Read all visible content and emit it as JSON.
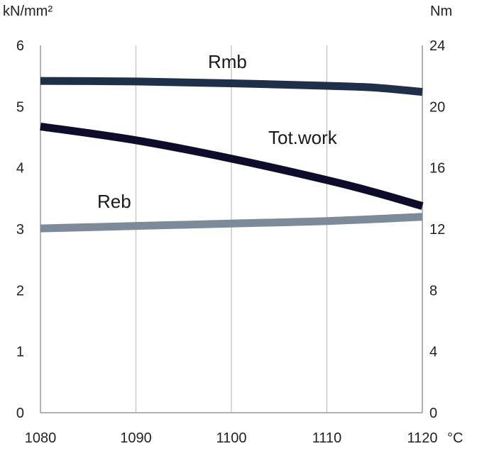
{
  "chart_data": {
    "type": "line",
    "title": "",
    "x": [
      1080,
      1120
    ],
    "xlim": [
      1080,
      1120
    ],
    "xticks": [
      "1080",
      "1090",
      "1100",
      "1110",
      "1120"
    ],
    "xunit": "°C",
    "ylim": [
      0,
      6
    ],
    "yticks": [
      "0",
      "1",
      "2",
      "3",
      "4",
      "5",
      "6"
    ],
    "yunit": "kN/mm²",
    "y2lim": [
      0,
      24
    ],
    "y2ticks": [
      "0",
      "4",
      "8",
      "12",
      "16",
      "20",
      "24"
    ],
    "y2unit": "Nm",
    "grid": "vertical",
    "series": [
      {
        "name": "Rmb",
        "axis": "left",
        "color": "#1f2f4a",
        "points": [
          [
            1080,
            5.42
          ],
          [
            1090,
            5.41
          ],
          [
            1100,
            5.38
          ],
          [
            1110,
            5.34
          ],
          [
            1115,
            5.31
          ],
          [
            1120,
            5.24
          ]
        ]
      },
      {
        "name": "Tot.work",
        "axis": "right",
        "color": "#0d0d2b",
        "points": [
          [
            1080,
            18.7
          ],
          [
            1090,
            17.8
          ],
          [
            1100,
            16.6
          ],
          [
            1110,
            15.2
          ],
          [
            1115,
            14.4
          ],
          [
            1120,
            13.5
          ]
        ]
      },
      {
        "name": "Reb",
        "axis": "left",
        "color": "#7d8a99",
        "points": [
          [
            1080,
            3.01
          ],
          [
            1090,
            3.05
          ],
          [
            1100,
            3.09
          ],
          [
            1110,
            3.13
          ],
          [
            1120,
            3.2
          ]
        ]
      }
    ]
  }
}
